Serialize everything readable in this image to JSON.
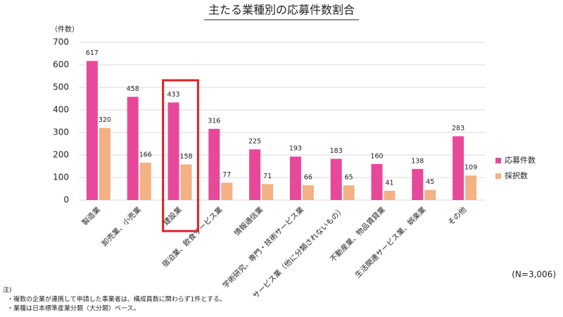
{
  "chart_data": {
    "type": "bar",
    "title": "主たる業種別の応募件数割合",
    "y_label": "（件数）",
    "categories": [
      "製造業",
      "卸売業、小売業",
      "建設業",
      "宿泊業、飲食サービス業",
      "情報通信業",
      "学術研究、専門・技術サービス業",
      "サービス業（他に分類されないもの）",
      "不動産業、物品賃貸業",
      "生活関連サービス業、娯楽業",
      "その他"
    ],
    "series": [
      {
        "name": "応募件数",
        "color": "#e8489a",
        "values": [
          617,
          458,
          433,
          316,
          225,
          193,
          183,
          160,
          138,
          283
        ]
      },
      {
        "name": "採択数",
        "color": "#f4b183",
        "values": [
          320,
          166,
          158,
          77,
          71,
          66,
          65,
          41,
          45,
          109
        ]
      }
    ],
    "ylim": [
      0,
      700
    ],
    "yticks": [
      0,
      100,
      200,
      300,
      400,
      500,
      600,
      700
    ],
    "grid": true,
    "legend": "right",
    "annotation": "(N=3,006)",
    "notes_title": "注)",
    "notes": [
      "・複数の企業が連携して申請した事業者は、構成員数に関わらず1件とする。",
      "・業種は日本標準産業分類（大分類）ベース。"
    ]
  }
}
